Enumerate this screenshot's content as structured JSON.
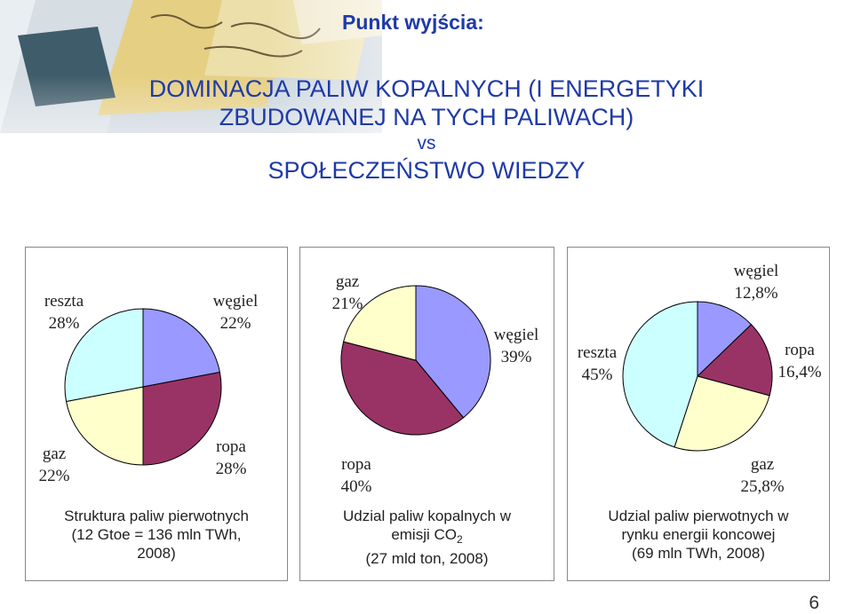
{
  "header": "Punkt wyjścia:",
  "title": {
    "line1": "DOMINACJA PALIW KOPALNYCH (I ENERGETYKI",
    "line2": "ZBUDOWANEJ NA TYCH PALIWACH)",
    "vs": "vs",
    "line3": "SPOŁECZEŃSTWO WIEDZY"
  },
  "chart_data": [
    {
      "type": "pie",
      "caption": "Struktura paliw pierwotnych (12 Gtoe = 136 mln TWh, 2008)",
      "caption_lines": [
        "Struktura paliw pierwotnych",
        "(12 Gtoe = 136 mln TWh,",
        "2008)"
      ],
      "slices": [
        {
          "name": "węgiel",
          "value_label": "22%",
          "value": 22,
          "color": "#9999ff"
        },
        {
          "name": "ropa",
          "value_label": "28%",
          "value": 28,
          "color": "#993366"
        },
        {
          "name": "gaz",
          "value_label": "22%",
          "value": 22,
          "color": "#ffffcc"
        },
        {
          "name": "reszta",
          "value_label": "28%",
          "value": 28,
          "color": "#ccffff"
        }
      ]
    },
    {
      "type": "pie",
      "caption": "Udzial paliw kopalnych w emisji CO2 (27 mld ton, 2008)",
      "caption_lines": [
        "Udzial paliw kopalnych w",
        "emisji CO",
        "2",
        "(27 mld ton, 2008)"
      ],
      "slices": [
        {
          "name": "węgiel",
          "value_label": "39%",
          "value": 39,
          "color": "#9999ff"
        },
        {
          "name": "ropa",
          "value_label": "40%",
          "value": 40,
          "color": "#993366"
        },
        {
          "name": "gaz",
          "value_label": "21%",
          "value": 21,
          "color": "#ffffcc"
        }
      ]
    },
    {
      "type": "pie",
      "caption": "Udzial paliw pierwotnych w rynku energii koncowej (69 mln TWh, 2008)",
      "caption_lines": [
        "Udzial paliw pierwotnych w",
        "rynku energii koncowej",
        "(69 mln TWh, 2008)"
      ],
      "slices": [
        {
          "name": "węgiel",
          "value_label": "12,8%",
          "value": 12.8,
          "color": "#9999ff"
        },
        {
          "name": "ropa",
          "value_label": "16,4%",
          "value": 16.4,
          "color": "#993366"
        },
        {
          "name": "gaz",
          "value_label": "25,8%",
          "value": 25.8,
          "color": "#ffffcc"
        },
        {
          "name": "reszta",
          "value_label": "45%",
          "value": 45,
          "color": "#ccffff"
        }
      ]
    }
  ],
  "page_number": "6"
}
